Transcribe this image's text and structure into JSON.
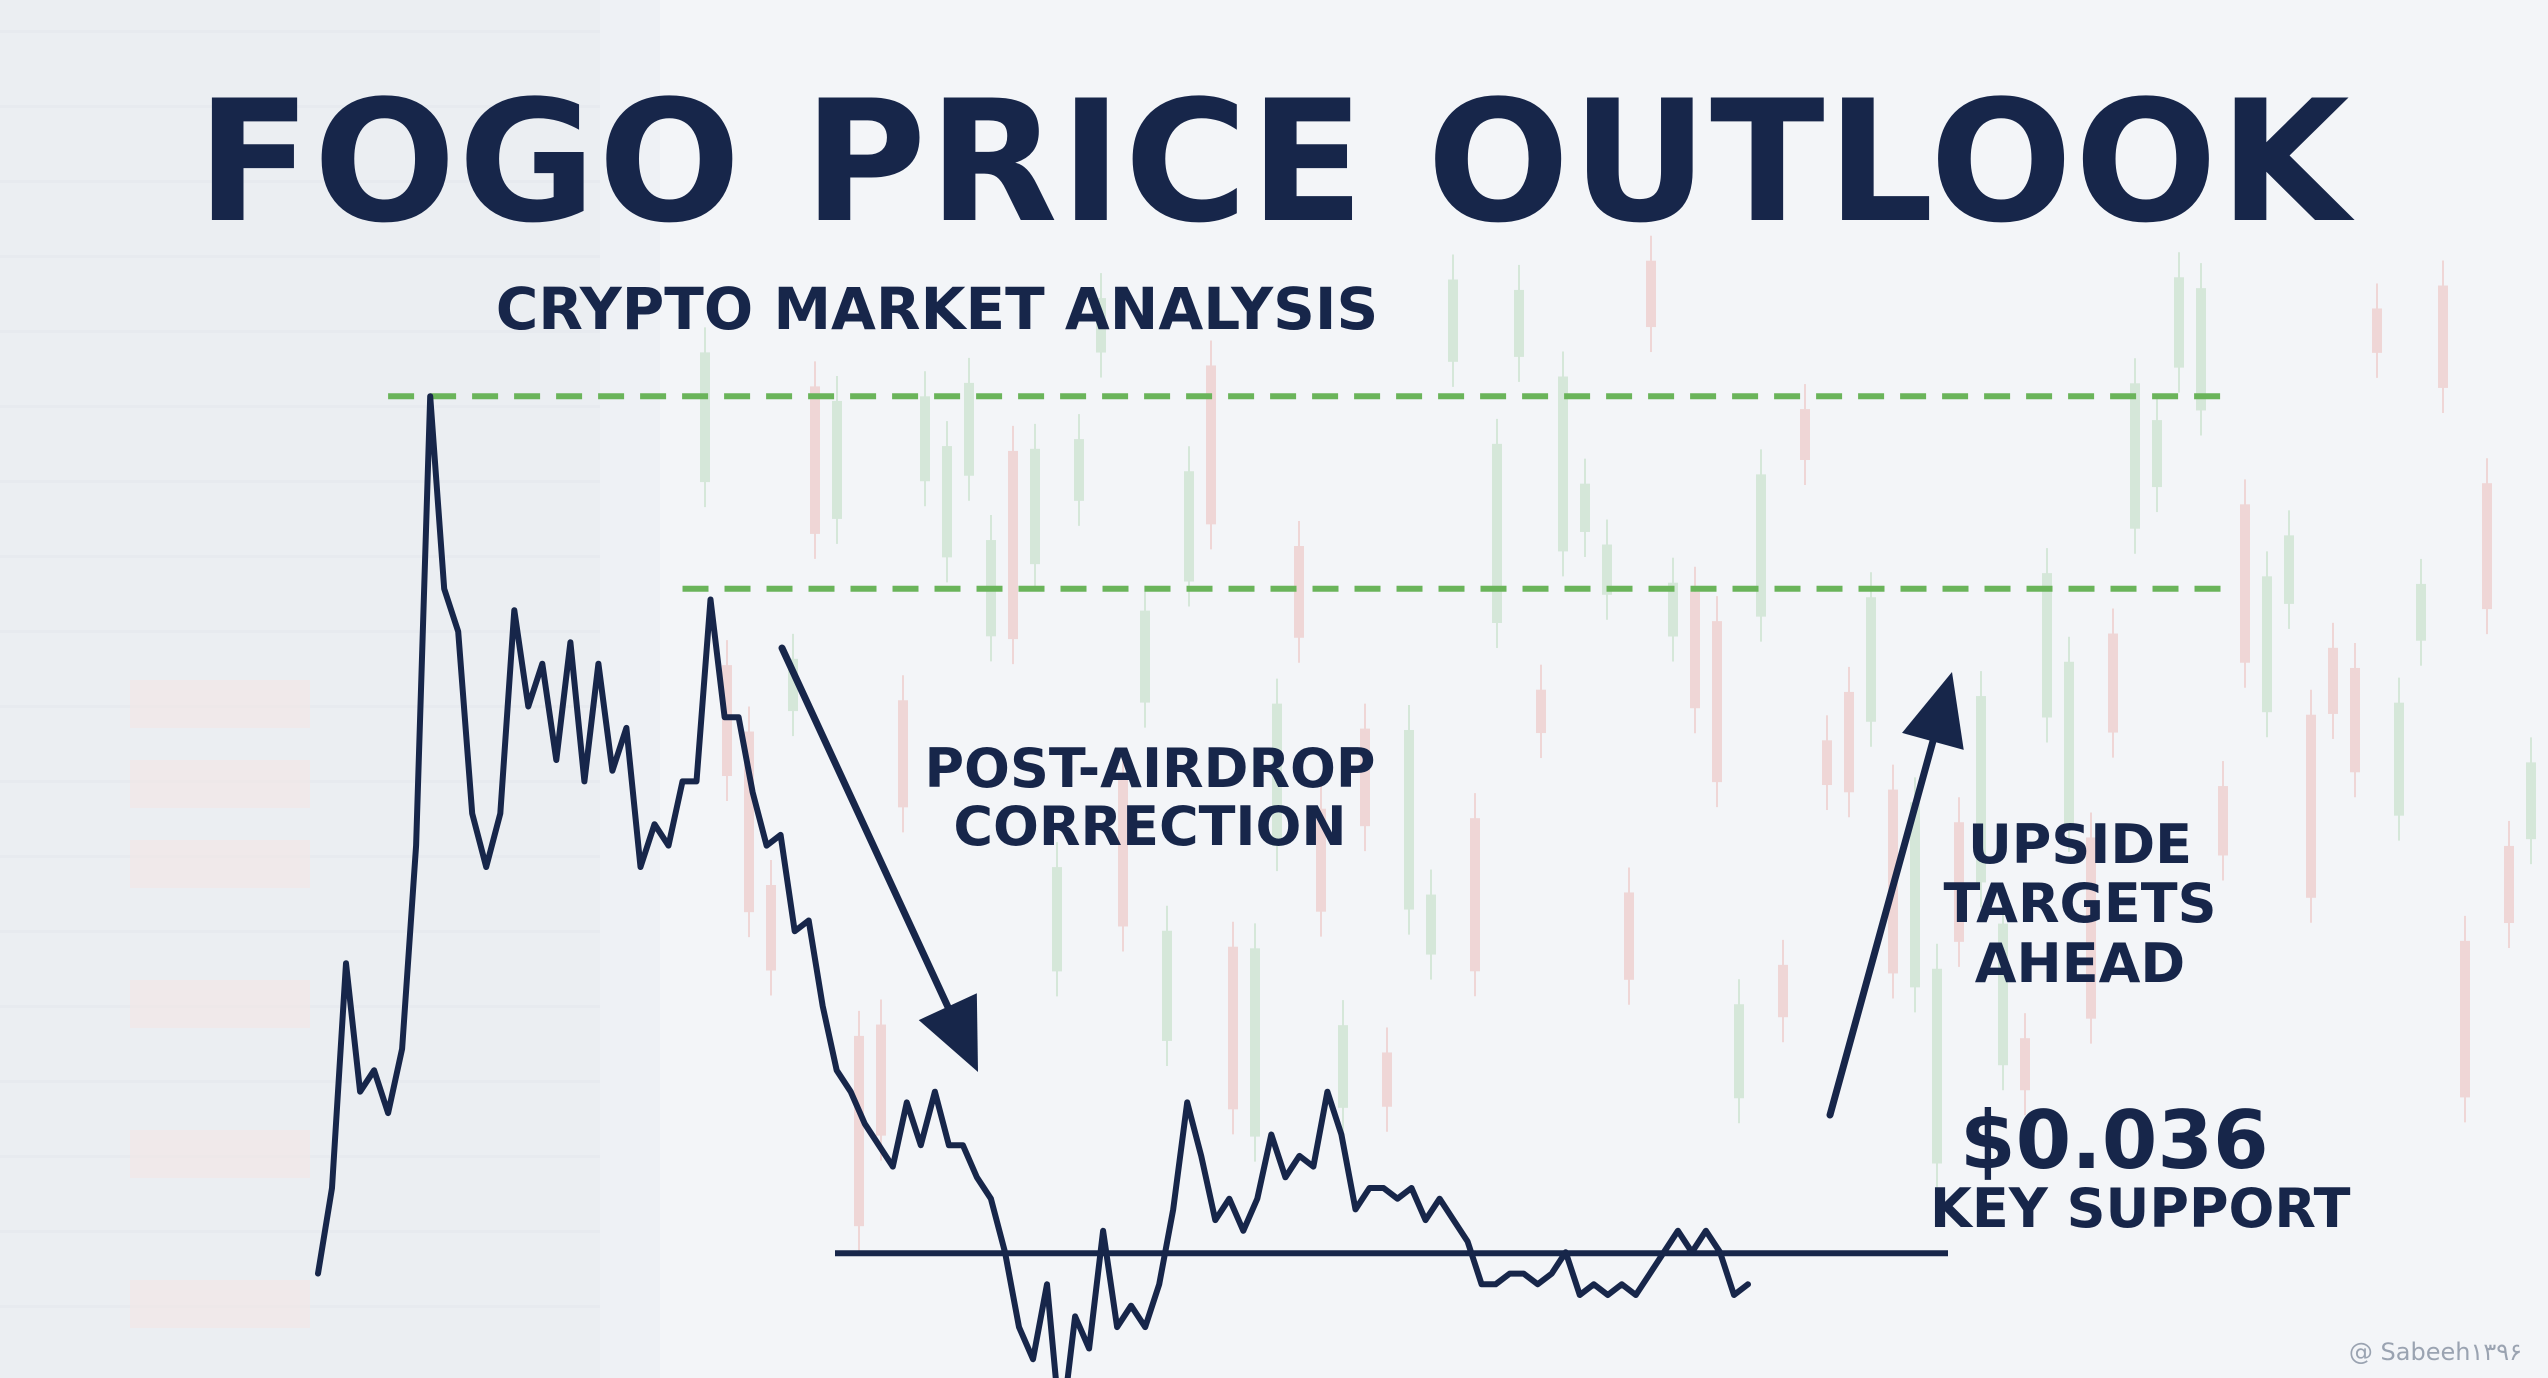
{
  "header": {
    "title": "FOGO PRICE OUTLOOK",
    "subtitle": "CRYPTO MARKET ANALYSIS"
  },
  "annotations": {
    "correction_line1": "POST-AIRDROP",
    "correction_line2": "CORRECTION",
    "upside_line1": "UPSIDE",
    "upside_line2": "TARGETS",
    "upside_line3": "AHEAD",
    "support_price": "$0.036",
    "support_label": "KEY SUPPORT"
  },
  "watermark": "@ Sabeeh۱۳۹۶",
  "colors": {
    "primary": "#17264a",
    "target_line": "#6ab45a",
    "background": "#eef1f5",
    "candle_up": "#5aa85a",
    "candle_down": "#d9544a"
  },
  "chart_data": {
    "type": "line",
    "title": "FOGO PRICE OUTLOOK",
    "subtitle": "CRYPTO MARKET ANALYSIS",
    "xlabel": "",
    "ylabel": "",
    "grid": false,
    "legend": "none",
    "y_scale": "unlabeled",
    "series": [
      {
        "values": [
          2,
          10,
          31,
          19,
          21,
          17,
          23,
          42,
          84,
          66,
          62,
          45,
          40,
          45,
          64,
          55,
          59,
          50,
          61,
          48,
          59,
          49,
          53,
          40,
          44,
          42,
          48,
          48,
          65,
          54,
          54,
          47,
          42,
          43,
          34,
          35,
          27,
          21,
          19,
          16,
          14,
          12,
          18,
          14,
          19,
          14,
          14,
          11,
          9,
          4,
          -3,
          -6,
          1,
          -13,
          -2,
          -5,
          6,
          -3,
          -1,
          -3,
          1,
          8,
          18,
          13,
          7,
          9,
          6,
          9,
          15,
          11,
          13,
          12,
          19,
          15,
          8,
          10,
          10,
          9,
          10,
          7,
          9,
          7,
          5,
          1,
          1,
          2,
          2,
          1,
          2,
          4,
          0,
          1,
          0,
          1,
          0,
          2,
          4,
          6,
          4,
          6,
          4,
          0,
          1
        ]
      }
    ],
    "reference_lines": [
      {
        "type": "horizontal",
        "style": "dashed",
        "color": "#6ab45a",
        "y": 84
      },
      {
        "type": "horizontal",
        "style": "dashed",
        "color": "#6ab45a",
        "y": 66
      },
      {
        "type": "horizontal",
        "style": "solid",
        "color": "#17264a",
        "y": 4
      }
    ],
    "arrows": [
      {
        "direction": "down",
        "label": "POST-AIRDROP CORRECTION"
      },
      {
        "direction": "up",
        "label": "UPSIDE TARGETS AHEAD"
      }
    ]
  }
}
